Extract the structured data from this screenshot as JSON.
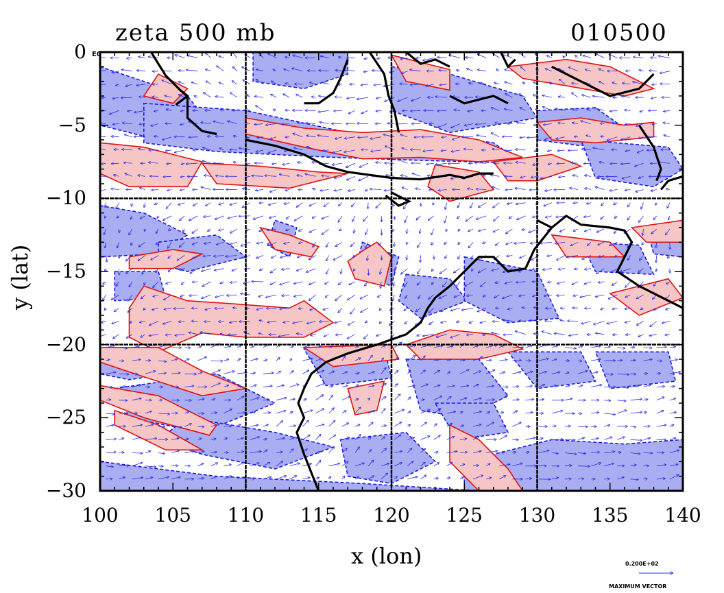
{
  "title_left": "zeta 500 mb",
  "title_right": "010500",
  "exponent_label": "E0",
  "xlabel": "x (lon)",
  "ylabel": "y (lat)",
  "x_ticks": [
    "100",
    "105",
    "110",
    "115",
    "120",
    "125",
    "130",
    "135",
    "140"
  ],
  "y_ticks": [
    "0",
    "−5",
    "−10",
    "−15",
    "−20",
    "−25",
    "−30"
  ],
  "vector_legend": {
    "value": "0.200E+02",
    "label": "MAXIMUM VECTOR"
  },
  "colors": {
    "positive_fill": "#f6c6c6",
    "positive_line": "#e01010",
    "negative_fill": "#a9aef2",
    "negative_line": "#1a1ae0",
    "coast": "#000000",
    "vector": "#2a2ae8"
  },
  "chart_data": {
    "type": "map",
    "field": "zeta 500 mb",
    "xlim": [
      100,
      140
    ],
    "ylim": [
      -30,
      0
    ],
    "grid_lon": [
      110,
      120,
      130
    ],
    "grid_lat": [
      -10,
      -20
    ]
  }
}
